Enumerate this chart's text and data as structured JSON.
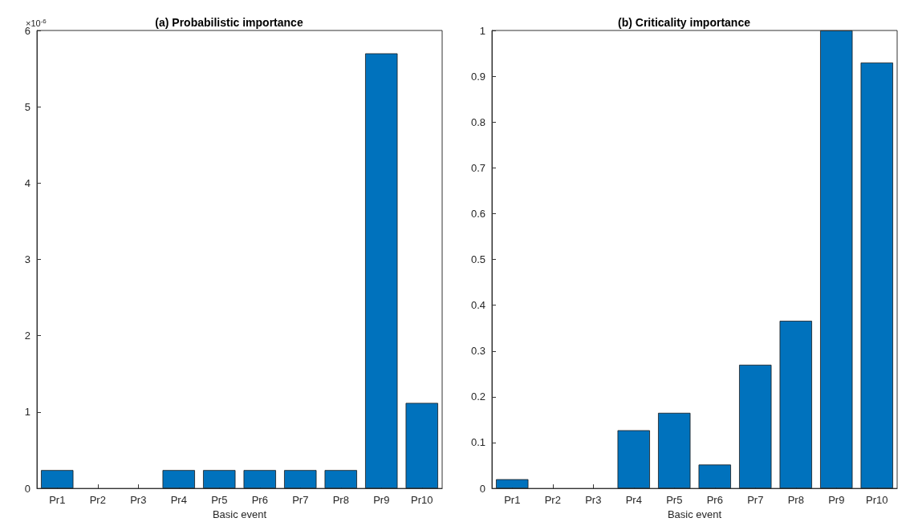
{
  "chart_data": [
    {
      "type": "bar",
      "title": "(a) Probabilistic importance",
      "xlabel": "Basic event",
      "categories": [
        "Pr1",
        "Pr2",
        "Pr3",
        "Pr4",
        "Pr5",
        "Pr6",
        "Pr7",
        "Pr8",
        "Pr9",
        "Pr10"
      ],
      "values": [
        0.24,
        0,
        0,
        0.24,
        0.24,
        0.24,
        0.24,
        0.24,
        5.7,
        1.12
      ],
      "color": "#0072bd",
      "ylim": [
        0,
        6
      ],
      "yticks": [
        0,
        1,
        2,
        3,
        4,
        5,
        6
      ],
      "annotations": [
        "×10$^{-6}$"
      ],
      "grid": false
    },
    {
      "type": "bar",
      "title": "(b) Criticality importance",
      "xlabel": "Basic event",
      "categories": [
        "Pr1",
        "Pr2",
        "Pr3",
        "Pr4",
        "Pr5",
        "Pr6",
        "Pr7",
        "Pr8",
        "Pr9",
        "Pr10"
      ],
      "values": [
        0.02,
        0,
        0,
        0.127,
        0.165,
        0.052,
        0.27,
        0.366,
        1.0,
        0.93
      ],
      "color": "#0072bd",
      "ylim": [
        0,
        1
      ],
      "yticks": [
        0,
        0.1,
        0.2,
        0.3,
        0.4,
        0.5,
        0.6,
        0.7,
        0.8,
        0.9,
        1
      ],
      "grid": false
    }
  ]
}
